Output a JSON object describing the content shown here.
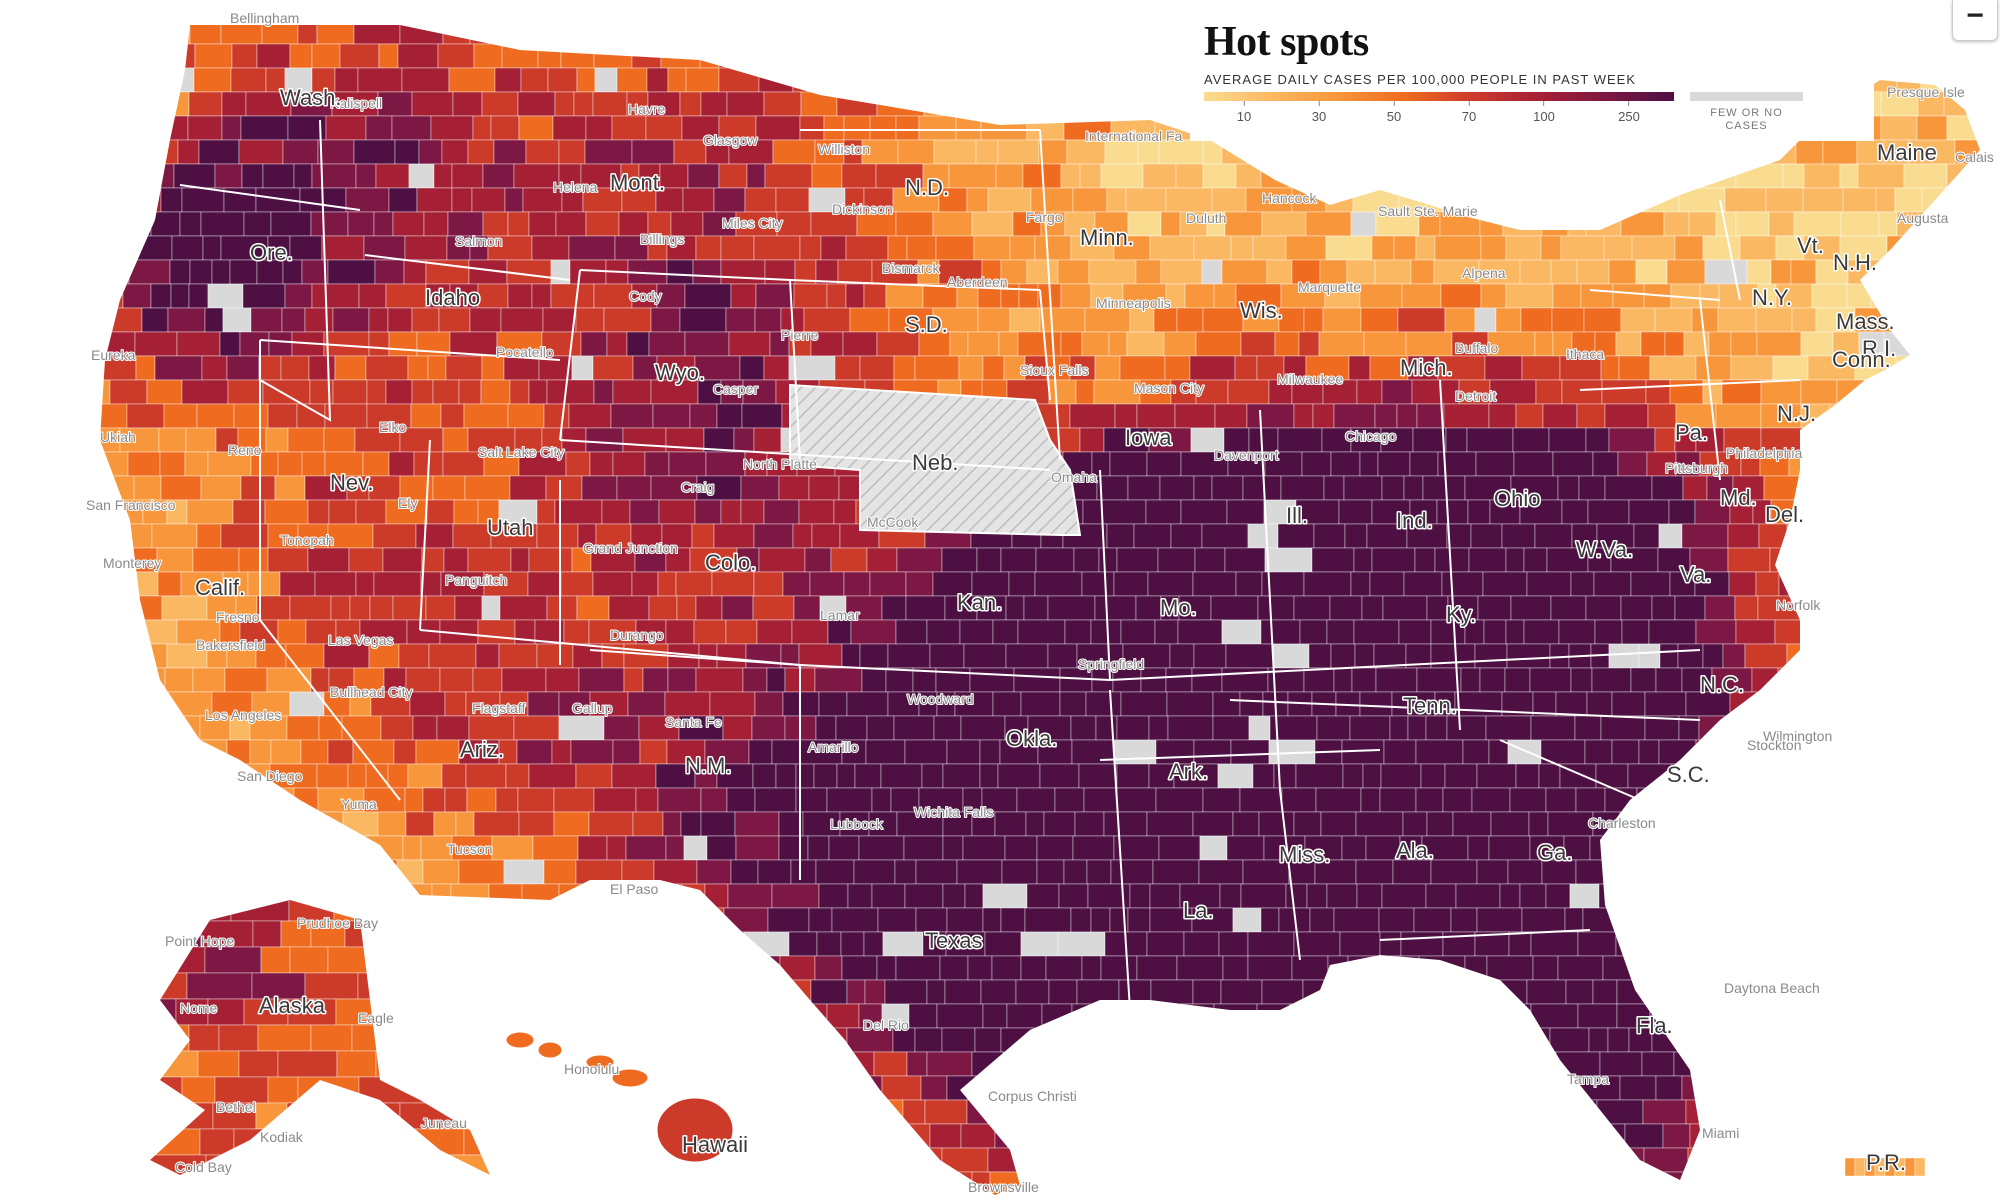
{
  "title": "Hot spots",
  "legend": {
    "subtitle": "AVERAGE DAILY CASES PER 100,000 PEOPLE IN PAST WEEK",
    "ticks": [
      "10",
      "30",
      "50",
      "70",
      "100",
      "250"
    ],
    "no_data_label": "FEW OR NO CASES",
    "colors": [
      "#f9dc8f",
      "#fbb862",
      "#f7963a",
      "#ee6b1f",
      "#cc3a2a",
      "#a52035",
      "#7d1743",
      "#4e1042"
    ],
    "no_data_color": "#d9d9d9"
  },
  "zoom_out_label": "−",
  "states": [
    "Wash.",
    "Ore.",
    "Idaho",
    "Mont.",
    "N.D.",
    "Minn.",
    "S.D.",
    "Wyo.",
    "Neb.",
    "Iowa",
    "Wis.",
    "Mich.",
    "Nev.",
    "Calif.",
    "Utah",
    "Colo.",
    "Kan.",
    "Mo.",
    "Ill.",
    "Ind.",
    "Ohio",
    "Pa.",
    "N.Y.",
    "Vt.",
    "N.H.",
    "Maine",
    "Mass.",
    "R.I.",
    "Conn.",
    "N.J.",
    "Md.",
    "Del.",
    "W.Va.",
    "Va.",
    "Ky.",
    "Tenn.",
    "N.C.",
    "S.C.",
    "Ga.",
    "Ala.",
    "Miss.",
    "La.",
    "Ark.",
    "Okla.",
    "Texas",
    "N.M.",
    "Ariz.",
    "Fla.",
    "Alaska",
    "Hawaii",
    "P.R."
  ],
  "cities": [
    "Bellingham",
    "Kalispell",
    "Havre",
    "Glasgow",
    "Williston",
    "International Fa",
    "Presque Isle",
    "Calais",
    "Salmon",
    "Helena",
    "Miles City",
    "Dickinson",
    "Fargo",
    "Bismarck",
    "Hancock",
    "Sault Ste. Marie",
    "Augusta",
    "Billings",
    "Cody",
    "Aberdeen",
    "Duluth",
    "Alpena",
    "Minneapolis",
    "Eureka",
    "Pocatello",
    "Pierre",
    "Sioux Falls",
    "Marquette",
    "Buffalo",
    "Ithaca",
    "Mason City",
    "Milwaukee",
    "Detroit",
    "Elko",
    "Salt Lake City",
    "Casper",
    "Ukiah",
    "Reno",
    "North Platte",
    "Omaha",
    "Davenport",
    "Chicago",
    "Philadelphia",
    "Pittsburgh",
    "San Francisco",
    "Ely",
    "Craig",
    "McCook",
    "Monterey",
    "Tonopah",
    "Grand Junction",
    "Fresno",
    "Panguitch",
    "Lamar",
    "Norfolk",
    "Las Vegas",
    "Durango",
    "Bakersfield",
    "Springfield",
    "Bullhead City",
    "Flagstaff",
    "Gallup",
    "Santa Fe",
    "Woodward",
    "Wilmington",
    "Los Angeles",
    "Amarillo",
    "San Diego",
    "Yuma",
    "Wichita Falls",
    "Lubbock",
    "Tucson",
    "El Paso",
    "Charleston",
    "Stockton",
    "Point Hope",
    "Prudhoe Bay",
    "Nome",
    "Eagle",
    "Daytona Beach",
    "Del Rio",
    "Honolulu",
    "Corpus Christi",
    "Tampa",
    "Miami",
    "Bethel",
    "Juneau",
    "Kodiak",
    "Cold Bay",
    "Brownsville"
  ]
}
